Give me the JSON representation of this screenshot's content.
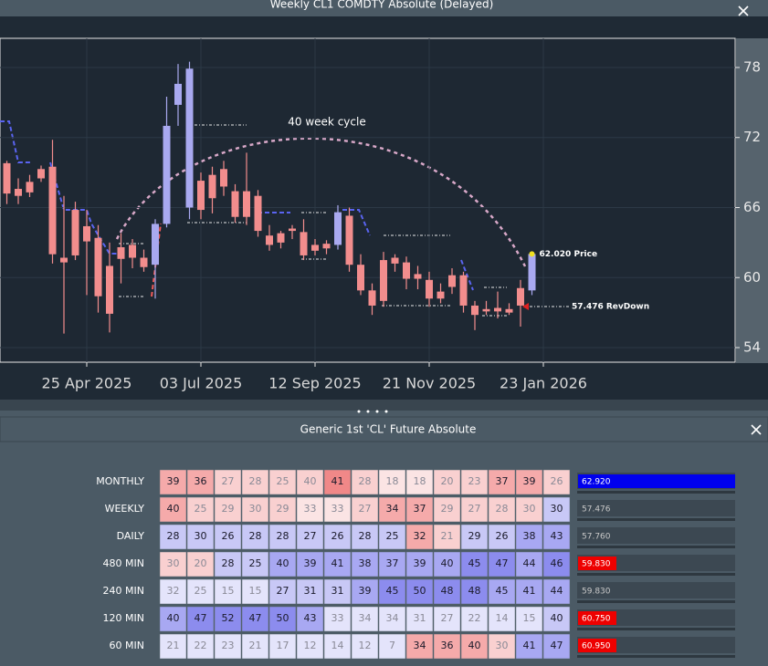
{
  "window": {
    "title": "Weekly CL1 COMDTY Absolute   (Delayed)"
  },
  "chart_data": {
    "type": "candlestick",
    "x": [
      0,
      1,
      2,
      3,
      4,
      5,
      6,
      7,
      8,
      9,
      10,
      11,
      12,
      13,
      14,
      15,
      16,
      17,
      18,
      19,
      20,
      21,
      22,
      23,
      24,
      25,
      26,
      27,
      28,
      29,
      30,
      31,
      32,
      33,
      34,
      35,
      36,
      37,
      38,
      39,
      40,
      41,
      42,
      43,
      44,
      45,
      46
    ],
    "open": [
      69.8,
      67.6,
      68.2,
      69.3,
      69.5,
      61.7,
      65.8,
      64.4,
      63.4,
      61.0,
      62.6,
      62.8,
      61.7,
      61.1,
      64.6,
      74.8,
      66.0,
      68.3,
      68.8,
      69.3,
      67.4,
      67.4,
      67.0,
      63.6,
      63.8,
      64.2,
      63.9,
      62.8,
      62.9,
      62.8,
      65.3,
      61.1,
      58.9,
      61.5,
      61.7,
      61.3,
      60.3,
      59.8,
      58.8,
      60.2,
      60.2,
      57.6,
      57.3,
      57.4,
      57.3,
      59.1,
      58.9
    ],
    "high": [
      70.0,
      68.5,
      68.8,
      69.6,
      71.8,
      67.0,
      66.5,
      65.8,
      64.5,
      63.0,
      63.8,
      63.3,
      62.4,
      65.0,
      75.5,
      78.3,
      78.5,
      69.0,
      69.5,
      70.0,
      68.0,
      70.7,
      67.5,
      64.5,
      64.0,
      64.5,
      65.0,
      63.3,
      63.2,
      66.2,
      66.0,
      62.0,
      59.5,
      62.2,
      62.0,
      61.8,
      61.0,
      60.5,
      59.5,
      60.8,
      60.5,
      58.0,
      58.0,
      58.8,
      57.8,
      59.8,
      62.1
    ],
    "low": [
      66.3,
      66.3,
      66.9,
      68.2,
      61.2,
      55.2,
      61.5,
      58.5,
      57.0,
      55.3,
      59.5,
      60.8,
      60.5,
      58.2,
      64.3,
      73.0,
      65.0,
      65.0,
      65.5,
      67.0,
      64.7,
      64.5,
      63.5,
      62.3,
      62.5,
      63.3,
      61.5,
      61.9,
      62.0,
      62.4,
      60.5,
      58.5,
      56.8,
      57.5,
      60.5,
      59.0,
      59.0,
      57.5,
      57.8,
      58.6,
      57.0,
      55.5,
      56.8,
      56.5,
      56.8,
      55.8,
      58.5
    ],
    "close": [
      67.2,
      67.0,
      67.3,
      68.5,
      62.0,
      61.3,
      61.9,
      63.1,
      58.4,
      56.9,
      61.6,
      61.7,
      60.9,
      64.6,
      73.0,
      76.6,
      77.9,
      65.8,
      66.8,
      67.8,
      65.2,
      65.2,
      64.0,
      62.8,
      63.0,
      64.0,
      61.9,
      62.3,
      62.5,
      65.6,
      61.1,
      58.9,
      57.6,
      58.0,
      61.2,
      59.9,
      59.9,
      58.2,
      58.2,
      59.2,
      57.6,
      56.8,
      57.1,
      57.1,
      57.0,
      57.6,
      62.02
    ],
    "xlim": [
      -0.6,
      63.8
    ],
    "xticks": [
      {
        "value": 7,
        "label": "25 Apr 2025"
      },
      {
        "value": 17,
        "label": "03 Jul 2025"
      },
      {
        "value": 27,
        "label": "12 Sep 2025"
      },
      {
        "value": 37,
        "label": "21 Nov 2025"
      },
      {
        "value": 47,
        "label": "23 Jan 2026"
      }
    ],
    "ylim": [
      52.75,
      80.5
    ],
    "yticks": [
      54,
      60,
      66,
      72,
      78
    ],
    "grid": true,
    "up_color": "#a9a9f0",
    "down_color": "#f28d8d",
    "annotations": [
      "40 week cycle",
      "62.020",
      "Price",
      "57.476 RevDown"
    ]
  },
  "panel": {
    "title": "Generic 1st 'CL' Future Absolute",
    "rows": [
      {
        "label": "MONTHLY",
        "values": [
          "39",
          "36",
          "27",
          "28",
          "25",
          "40",
          "41",
          "28",
          "18",
          "18",
          "20",
          "23",
          "37",
          "39",
          "26"
        ],
        "colors": [
          "#f5aaaa",
          "#f5aaaa",
          "#f9d0d0",
          "#f9d0d0",
          "#f9d0d0",
          "#f9d0d0",
          "#f08888",
          "#f9d0d0",
          "#fbe4e4",
          "#fbe4e4",
          "#f9d0d0",
          "#f9d0d0",
          "#f5aaaa",
          "#f5aaaa",
          "#f9d0d0"
        ],
        "price": "62.920",
        "highlight": "#0000ee",
        "highlight_full": true
      },
      {
        "label": "WEEKLY",
        "values": [
          "40",
          "25",
          "29",
          "30",
          "29",
          "33",
          "33",
          "27",
          "34",
          "37",
          "29",
          "27",
          "28",
          "30",
          "30"
        ],
        "colors": [
          "#f5aaaa",
          "#f9d0d0",
          "#f9d0d0",
          "#f9d0d0",
          "#f9d0d0",
          "#fbe4e4",
          "#fbe4e4",
          "#f9d0d0",
          "#f5aaaa",
          "#f5aaaa",
          "#f9d0d0",
          "#f9d0d0",
          "#f9d0d0",
          "#f9d0d0",
          "#c8c8f6"
        ],
        "price": "57.476"
      },
      {
        "label": "DAILY",
        "values": [
          "28",
          "30",
          "26",
          "28",
          "28",
          "27",
          "26",
          "28",
          "25",
          "32",
          "21",
          "29",
          "26",
          "38",
          "43"
        ],
        "colors": [
          "#c8c8f6",
          "#c8c8f6",
          "#c8c8f6",
          "#c8c8f6",
          "#c8c8f6",
          "#c8c8f6",
          "#c8c8f6",
          "#c8c8f6",
          "#c8c8f6",
          "#f5aaaa",
          "#f9d0d0",
          "#c8c8f6",
          "#c8c8f6",
          "#a8a8f2",
          "#a8a8f2"
        ],
        "price": "57.760"
      },
      {
        "label": "480 MIN",
        "values": [
          "30",
          "20",
          "28",
          "25",
          "40",
          "39",
          "41",
          "38",
          "37",
          "39",
          "40",
          "45",
          "47",
          "44",
          "46"
        ],
        "colors": [
          "#f9d0d0",
          "#f9d0d0",
          "#c8c8f6",
          "#c8c8f6",
          "#a8a8f2",
          "#a8a8f2",
          "#a8a8f2",
          "#a8a8f2",
          "#a8a8f2",
          "#a8a8f2",
          "#a8a8f2",
          "#8c8cee",
          "#8c8cee",
          "#a8a8f2",
          "#8c8cee"
        ],
        "price": "59.830",
        "highlight": "#ee0000"
      },
      {
        "label": "240 MIN",
        "values": [
          "32",
          "25",
          "15",
          "15",
          "27",
          "31",
          "31",
          "39",
          "45",
          "50",
          "48",
          "48",
          "45",
          "41",
          "44"
        ],
        "colors": [
          "#e4e4fb",
          "#e4e4fb",
          "#e4e4fb",
          "#e4e4fb",
          "#c8c8f6",
          "#c8c8f6",
          "#c8c8f6",
          "#a8a8f2",
          "#8c8cee",
          "#8c8cee",
          "#8c8cee",
          "#8c8cee",
          "#a8a8f2",
          "#a8a8f2",
          "#a8a8f2"
        ],
        "price": "59.830"
      },
      {
        "label": "120 MIN",
        "values": [
          "40",
          "47",
          "52",
          "47",
          "50",
          "43",
          "33",
          "34",
          "34",
          "31",
          "27",
          "22",
          "14",
          "15",
          "40"
        ],
        "colors": [
          "#a8a8f2",
          "#8c8cee",
          "#8c8cee",
          "#8c8cee",
          "#8c8cee",
          "#a8a8f2",
          "#e4e4fb",
          "#e4e4fb",
          "#e4e4fb",
          "#e4e4fb",
          "#e4e4fb",
          "#e4e4fb",
          "#e4e4fb",
          "#e4e4fb",
          "#c8c8f6"
        ],
        "price": "60.750",
        "highlight": "#ee0000"
      },
      {
        "label": "60 MIN",
        "values": [
          "21",
          "22",
          "23",
          "21",
          "17",
          "12",
          "14",
          "12",
          "7",
          "34",
          "36",
          "40",
          "30",
          "41",
          "47"
        ],
        "colors": [
          "#e4e4fb",
          "#e4e4fb",
          "#e4e4fb",
          "#e4e4fb",
          "#e4e4fb",
          "#e4e4fb",
          "#e4e4fb",
          "#e4e4fb",
          "#e4e4fb",
          "#f5aaaa",
          "#f5aaaa",
          "#f5aaaa",
          "#f9d0d0",
          "#a8a8f2",
          "#a8a8f2"
        ],
        "price": "60.950",
        "highlight": "#ee0000"
      }
    ]
  }
}
